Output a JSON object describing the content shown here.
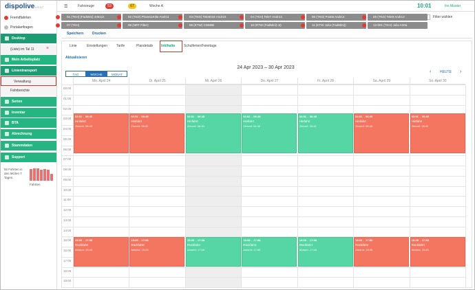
{
  "logo": {
    "name": "dispolive",
    "version": "v 9.3.7"
  },
  "topbar": {
    "vehicles": "Fahrzeuge",
    "badge_red": "53",
    "badge_yellow": "67",
    "week": "Woche A",
    "time": "10:01",
    "user": "Ins Muster"
  },
  "sidebar": {
    "items": [
      {
        "label": "Fremdfahrten",
        "style": "link"
      },
      {
        "label": "Portalanfragen",
        "style": "link"
      },
      {
        "label": "Desktop",
        "style": "header"
      },
      {
        "label": "(Liste) im Tal 11",
        "style": "sub"
      },
      {
        "label": "Mein Arbeitsplatz",
        "style": "section"
      },
      {
        "label": "Linientransport",
        "style": "header"
      },
      {
        "label": "Verwaltung",
        "style": "selected"
      },
      {
        "label": "Fahrberichte",
        "style": "sub"
      },
      {
        "label": "Serien",
        "style": "section"
      },
      {
        "label": "Inventar",
        "style": "section"
      },
      {
        "label": "BTA",
        "style": "section"
      },
      {
        "label": "Abrechnung",
        "style": "section"
      },
      {
        "label": "Stammdaten",
        "style": "section"
      },
      {
        "label": "Support",
        "style": "section"
      }
    ],
    "stats": {
      "text": "92 Fahrten in den letzten 7 Tagen.",
      "label": "Fahrten",
      "bars": [
        14,
        15,
        15,
        13,
        14,
        13,
        8
      ]
    }
  },
  "vehicles": [
    "01 (TKH) (FadMini) 4361Lk",
    "02 (TKD) PhoenixKilte Andr11",
    "03 (TKD) Tele5018 Andr10",
    "04 (TKH) Tele7 Andr13",
    "05 (TKD) Posti6 Andr14",
    "06 (TKD) Tele9 Andr12",
    "07 (TKH)",
    "08 (NRT Filter)",
    "09 (KTW) CDEBB",
    "10 (RTW (FadMini) ot)",
    "11 (KTW Julia (FadMini))",
    "12-001 (TKH) Julia A20a"
  ],
  "filter": "Filter wählen",
  "toolbar": [
    "Speichern",
    "Drucken"
  ],
  "tabs": [
    {
      "label": "Linie"
    },
    {
      "label": "Einstellungen"
    },
    {
      "label": "Tarife"
    },
    {
      "label": "Plandetails"
    },
    {
      "label": "Inklhalte",
      "active": true
    },
    {
      "label": "Schulferien/Feiertage"
    }
  ],
  "refresh": "Aktualisieren",
  "calendar": {
    "range": "24 Apr 2023 – 30 Apr 2023",
    "views": [
      {
        "label": "TAG"
      },
      {
        "label": "WOCHE",
        "active": true
      },
      {
        "label": "MONAT"
      }
    ],
    "today": "HEUTE",
    "hours": [
      "00:00",
      "01:00",
      "02:00",
      "03:00",
      "04:00",
      "05:00",
      "06:00",
      "07:00",
      "08:00",
      "09:00",
      "10:00",
      "11:00",
      "12:00",
      "13:00",
      "14:00",
      "15:00",
      "16:00",
      "17:00",
      "18:00",
      "19:00"
    ],
    "days": [
      {
        "label": "Mo. April 24",
        "events": [
          {
            "start": "02:51",
            "end": "06:45",
            "title": "Hinfahrt",
            "detail": "Zielzeit: 06:45",
            "color": "#f47560"
          },
          {
            "start": "15:05",
            "end": "17:58",
            "title": "Rückfahrt",
            "detail": "Abfahrt: 15:45",
            "color": "#f47560"
          }
        ]
      },
      {
        "label": "Di. April 25",
        "events": [
          {
            "start": "02:51",
            "end": "06:45",
            "title": "Hinfahrt",
            "detail": "Zielzeit: 06:45",
            "color": "#f47560"
          },
          {
            "start": "15:05",
            "end": "17:58",
            "title": "Rückfahrt",
            "detail": "Abfahrt: 15:45",
            "color": "#f47560"
          }
        ]
      },
      {
        "label": "Mi. April 26",
        "shaded": true,
        "events": [
          {
            "start": "02:51",
            "end": "06:45",
            "title": "Hinfahrt",
            "detail": "Zielzeit: 06:45",
            "color": "#55d6a4"
          },
          {
            "start": "15:05",
            "end": "17:58",
            "title": "Rückfahrt",
            "detail": "Abfahrt: 17:58",
            "color": "#55d6a4"
          }
        ]
      },
      {
        "label": "Do. April 27",
        "events": [
          {
            "start": "02:51",
            "end": "06:45",
            "title": "Hinfahrt",
            "detail": "Zielzeit: 06:45",
            "color": "#55d6a4"
          },
          {
            "start": "15:05",
            "end": "17:58",
            "title": "Rückfahrt",
            "detail": "Abfahrt: 17:58",
            "color": "#55d6a4"
          }
        ]
      },
      {
        "label": "Fr. April 28",
        "events": [
          {
            "start": "02:51",
            "end": "06:45",
            "title": "Hinfahrt",
            "detail": "Zielzeit: 06:45",
            "color": "#55d6a4"
          },
          {
            "start": "15:05",
            "end": "17:58",
            "title": "Rückfahrt",
            "detail": "Abfahrt: 17:58",
            "color": "#55d6a4"
          }
        ]
      },
      {
        "label": "Sa. April 29",
        "events": [
          {
            "start": "02:51",
            "end": "06:45",
            "title": "Hinfahrt",
            "detail": "Zielzeit: 06:45",
            "color": "#f47560"
          },
          {
            "start": "15:05",
            "end": "17:58",
            "title": "Rückfahrt",
            "detail": "Abfahrt: 15:45",
            "color": "#f47560"
          }
        ]
      },
      {
        "label": "So. April 30",
        "events": [
          {
            "start": "02:51",
            "end": "06:45",
            "title": "Hinfahrt",
            "detail": "Zielzeit: 06:45",
            "color": "#f47560"
          },
          {
            "start": "15:05",
            "end": "17:58",
            "title": "Rückfahrt",
            "detail": "Abfahrt: 15:45",
            "color": "#f47560"
          }
        ]
      }
    ]
  }
}
